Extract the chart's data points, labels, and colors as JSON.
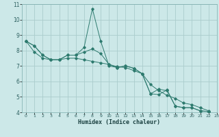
{
  "title": "",
  "xlabel": "Humidex (Indice chaleur)",
  "bg_color": "#cce8e8",
  "grid_color": "#aacccc",
  "line_color": "#2d7a6e",
  "xlim": [
    -0.5,
    23
  ],
  "ylim": [
    4,
    11
  ],
  "xticks": [
    0,
    1,
    2,
    3,
    4,
    5,
    6,
    7,
    8,
    9,
    10,
    11,
    12,
    13,
    14,
    15,
    16,
    17,
    18,
    19,
    20,
    21,
    22,
    23
  ],
  "yticks": [
    4,
    5,
    6,
    7,
    8,
    9,
    10,
    11
  ],
  "series": [
    [
      8.6,
      8.3,
      7.7,
      7.4,
      7.4,
      7.7,
      7.7,
      8.2,
      10.7,
      8.6,
      7.0,
      6.9,
      7.0,
      6.85,
      6.5,
      5.2,
      5.15,
      5.45,
      4.4,
      4.3,
      4.3,
      4.1,
      4.05
    ],
    [
      8.6,
      8.3,
      7.7,
      7.4,
      7.4,
      7.7,
      7.7,
      7.9,
      8.1,
      7.8,
      7.1,
      6.9,
      7.0,
      6.85,
      6.5,
      5.2,
      5.5,
      5.4,
      4.4,
      4.3,
      4.3,
      4.1,
      4.05
    ],
    [
      8.6,
      7.9,
      7.5,
      7.4,
      7.4,
      7.5,
      7.5,
      7.4,
      7.3,
      7.2,
      7.1,
      6.95,
      6.9,
      6.7,
      6.5,
      5.8,
      5.4,
      5.1,
      4.9,
      4.6,
      4.5,
      4.3,
      4.1
    ]
  ]
}
